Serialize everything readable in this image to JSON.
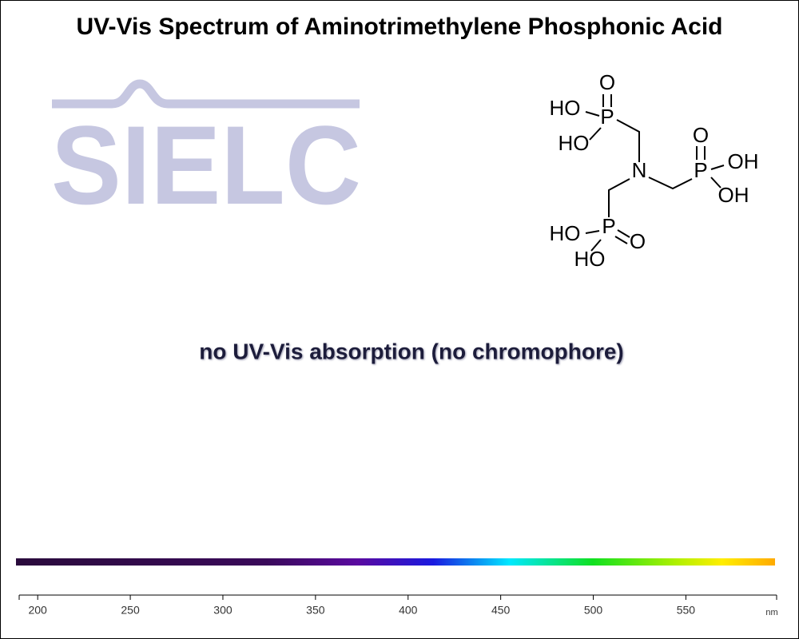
{
  "chart_data": {
    "type": "line",
    "title": "UV-Vis Spectrum of Aminotrimethylene Phosphonic Acid",
    "annotation": "no UV-Vis absorption (no chromophore)",
    "x_label": "nm",
    "xlim": [
      190,
      599
    ],
    "xticks": [
      200,
      250,
      300,
      350,
      400,
      450,
      500,
      550
    ]
  },
  "logo": "SIELC",
  "structure": {
    "atoms": [
      "O",
      "HO",
      "P",
      "HO",
      "N",
      "O",
      "P",
      "OH",
      "OH",
      "HO",
      "P",
      "O",
      "HO"
    ]
  }
}
